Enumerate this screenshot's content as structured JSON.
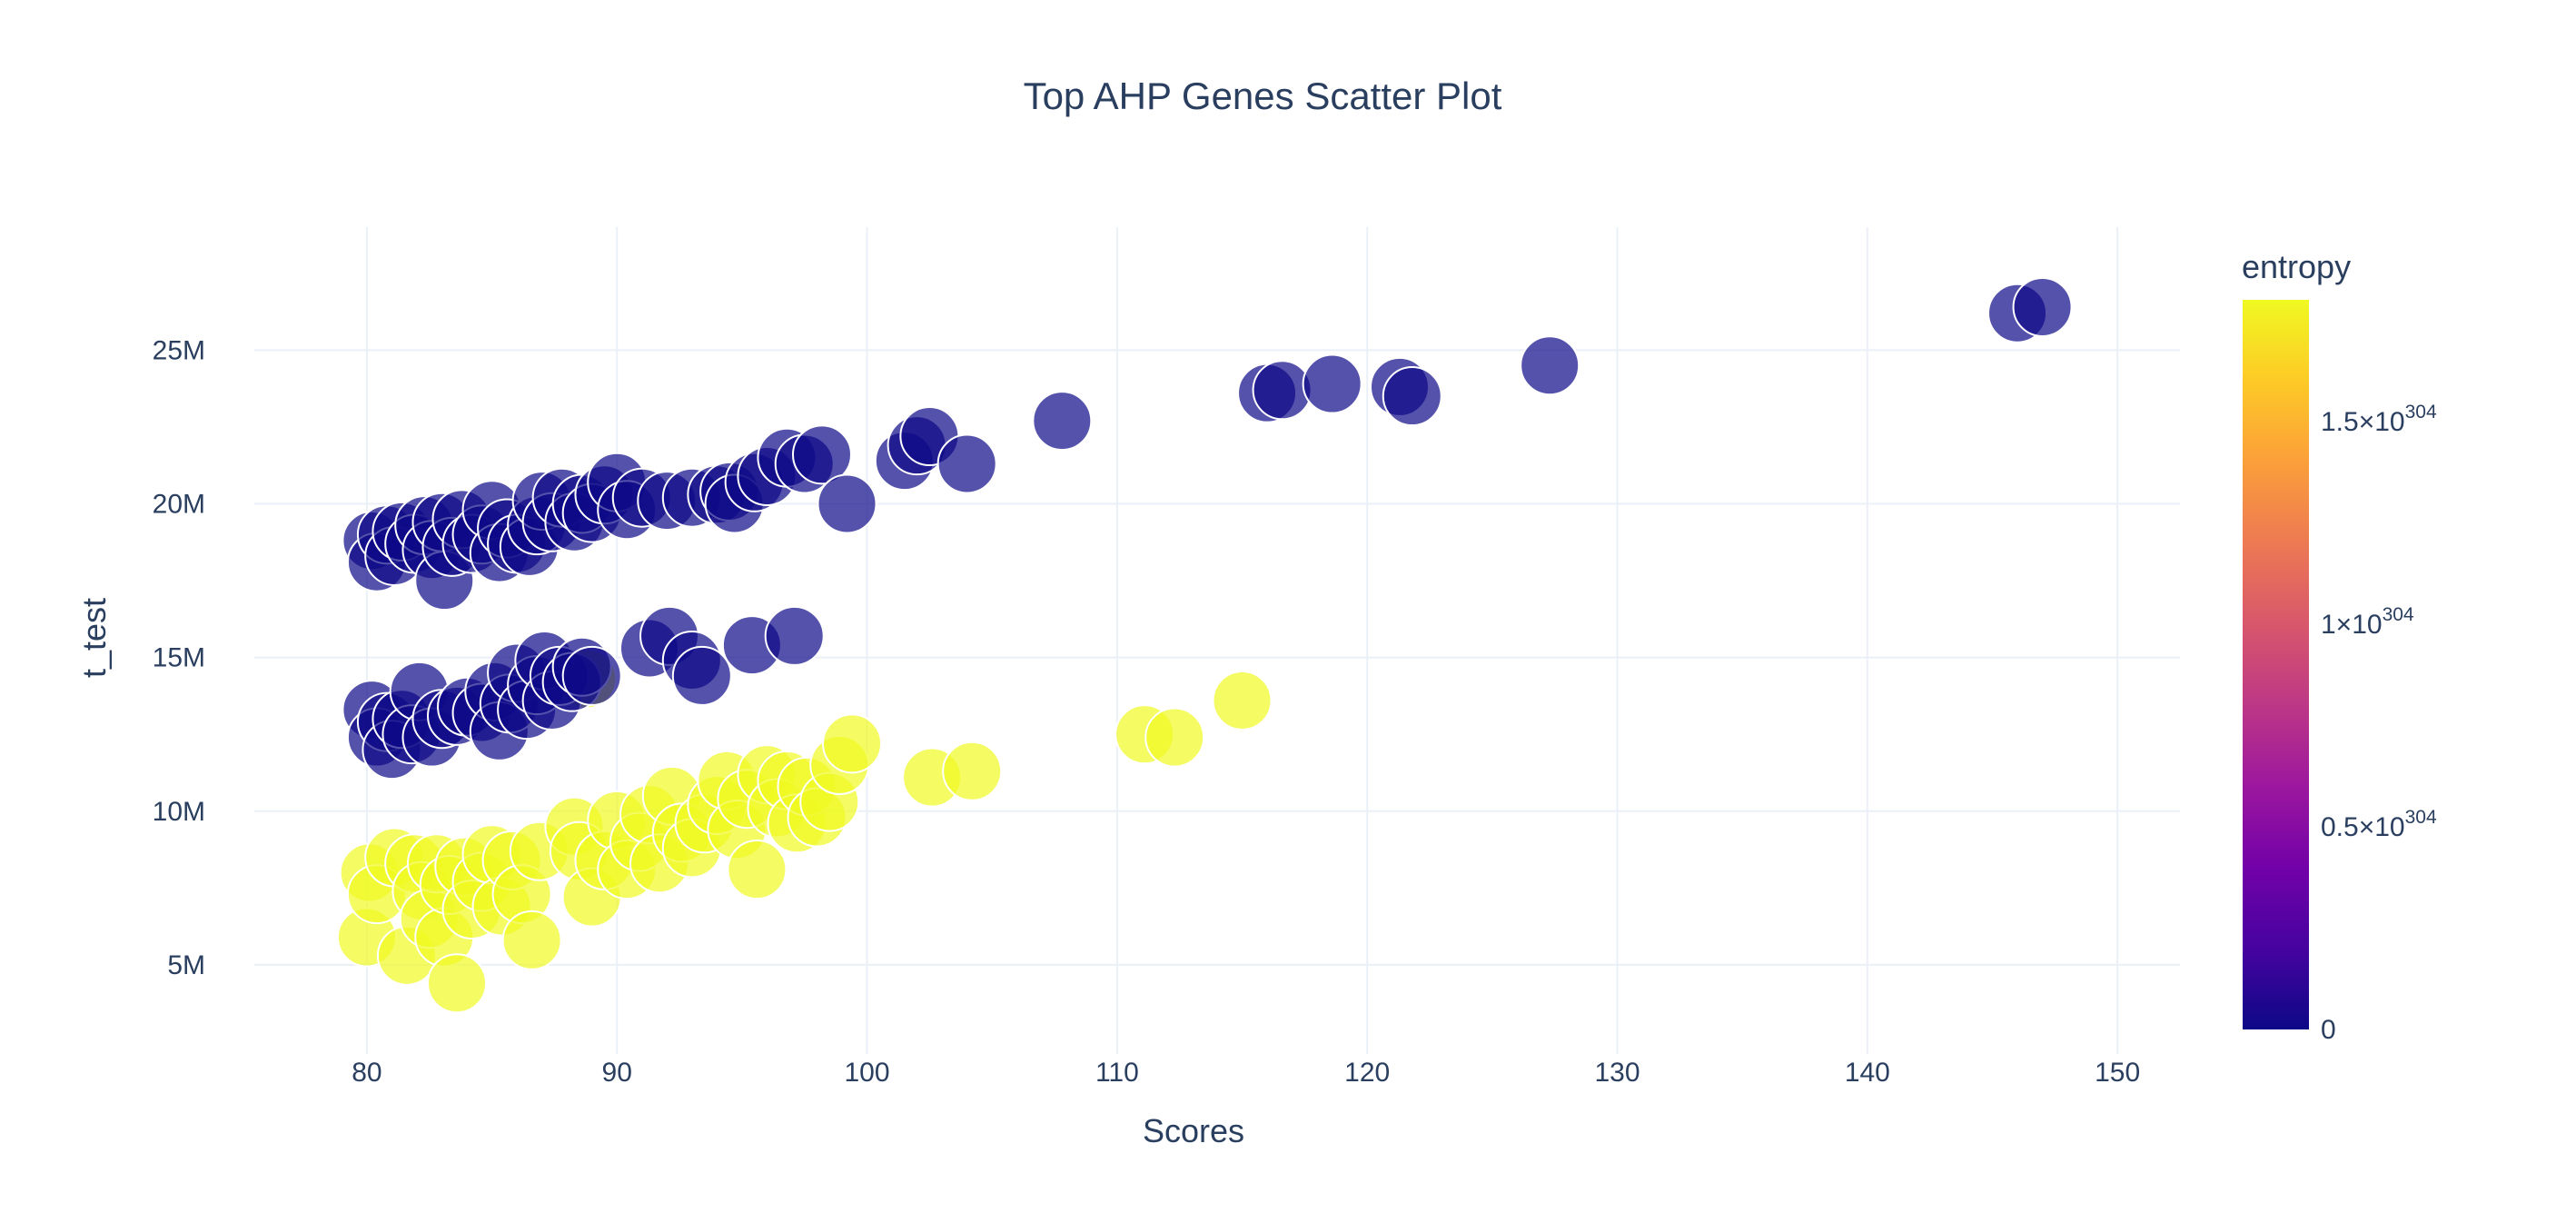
{
  "chart_data": {
    "type": "scatter",
    "title": "Top AHP Genes Scatter Plot",
    "xlabel": "Scores",
    "ylabel": "t_test",
    "xlim": [
      75.5,
      152.5
    ],
    "ylim": [
      2100000,
      29000000
    ],
    "grid": true,
    "x_ticks": [
      {
        "value": 80,
        "label": "80"
      },
      {
        "value": 90,
        "label": "90"
      },
      {
        "value": 100,
        "label": "100"
      },
      {
        "value": 110,
        "label": "110"
      },
      {
        "value": 120,
        "label": "120"
      },
      {
        "value": 130,
        "label": "130"
      },
      {
        "value": 140,
        "label": "140"
      },
      {
        "value": 150,
        "label": "150"
      }
    ],
    "y_ticks": [
      {
        "value": 5000000,
        "label": "5M"
      },
      {
        "value": 10000000,
        "label": "10M"
      },
      {
        "value": 15000000,
        "label": "15M"
      },
      {
        "value": 20000000,
        "label": "20M"
      },
      {
        "value": 25000000,
        "label": "25M"
      }
    ],
    "colorbar": {
      "title": "entropy",
      "range": [
        0,
        1.8e+304
      ],
      "colorscale": [
        "#0d0887",
        "#46039f",
        "#7201a8",
        "#9c179e",
        "#bd3786",
        "#d8576b",
        "#ed7953",
        "#fb9f3a",
        "#fdca26",
        "#f0f921"
      ],
      "ticks": [
        {
          "value": 0,
          "base": "0",
          "exp": ""
        },
        {
          "value": 5e+303,
          "base": "0.5×10",
          "exp": "304"
        },
        {
          "value": 1e+304,
          "base": "1×10",
          "exp": "304"
        },
        {
          "value": 1.5e+304,
          "base": "1.5×10",
          "exp": "304"
        }
      ]
    },
    "marker": {
      "opacity": 0.7,
      "outline": "#ffffff"
    },
    "series": [
      {
        "group": "upper",
        "color_value": 0,
        "points": [
          [
            80.2,
            18800000.0
          ],
          [
            80.4,
            18100000.0
          ],
          [
            80.8,
            19000000.0
          ],
          [
            81.1,
            18300000.0
          ],
          [
            81.4,
            19100000.0
          ],
          [
            81.9,
            18700000.0
          ],
          [
            82.3,
            19300000.0
          ],
          [
            82.6,
            18500000.0
          ],
          [
            83.0,
            19400000.0
          ],
          [
            83.1,
            17500000.0
          ],
          [
            83.4,
            18600000.0
          ],
          [
            83.8,
            19500000.0
          ],
          [
            84.2,
            18700000.0
          ],
          [
            84.6,
            19000000.0
          ],
          [
            85.0,
            19800000.0
          ],
          [
            85.3,
            18400000.0
          ],
          [
            85.6,
            19200000.0
          ],
          [
            86.0,
            18700000.0
          ],
          [
            86.5,
            18600000.0
          ],
          [
            86.8,
            19300000.0
          ],
          [
            87.0,
            20100000.0
          ],
          [
            87.4,
            19400000.0
          ],
          [
            87.8,
            20200000.0
          ],
          [
            88.3,
            19400000.0
          ],
          [
            88.6,
            20000000.0
          ],
          [
            89.0,
            19700000.0
          ],
          [
            89.5,
            20300000.0
          ],
          [
            90.0,
            20700000.0
          ],
          [
            90.4,
            19800000.0
          ],
          [
            91.0,
            20200000.0
          ],
          [
            92.0,
            20100000.0
          ],
          [
            93.0,
            20200000.0
          ],
          [
            94.0,
            20300000.0
          ],
          [
            94.5,
            20400000.0
          ],
          [
            94.7,
            20000000.0
          ],
          [
            95.5,
            20700000.0
          ],
          [
            96.0,
            20900000.0
          ],
          [
            96.8,
            21500000.0
          ],
          [
            97.5,
            21300000.0
          ],
          [
            98.2,
            21600000.0
          ],
          [
            99.2,
            20000000.0
          ],
          [
            101.5,
            21400000.0
          ],
          [
            102.0,
            21900000.0
          ],
          [
            102.5,
            22200000.0
          ],
          [
            104.0,
            21300000.0
          ],
          [
            107.8,
            22700000.0
          ],
          [
            116.0,
            23600000.0
          ],
          [
            116.6,
            23700000.0
          ],
          [
            118.6,
            23900000.0
          ],
          [
            121.3,
            23800000.0
          ],
          [
            121.8,
            23500000.0
          ],
          [
            127.3,
            24500000.0
          ],
          [
            146.0,
            26200000.0
          ],
          [
            147.0,
            26400000.0
          ]
        ]
      },
      {
        "group": "middle",
        "color_value": 0,
        "points": [
          [
            80.2,
            13300000.0
          ],
          [
            80.4,
            12400000.0
          ],
          [
            80.8,
            12900000.0
          ],
          [
            81.0,
            12000000.0
          ],
          [
            81.4,
            13000000.0
          ],
          [
            81.8,
            12500000.0
          ],
          [
            82.1,
            13900000.0
          ],
          [
            82.6,
            12400000.0
          ],
          [
            83.0,
            13000000.0
          ],
          [
            83.6,
            13100000.0
          ],
          [
            84.0,
            13400000.0
          ],
          [
            84.6,
            13200000.0
          ],
          [
            85.1,
            13900000.0
          ],
          [
            85.3,
            12600000.0
          ],
          [
            85.7,
            13500000.0
          ],
          [
            86.0,
            14500000.0
          ],
          [
            86.4,
            13300000.0
          ],
          [
            86.8,
            14100000.0
          ],
          [
            87.1,
            14900000.0
          ],
          [
            87.4,
            13600000.0
          ],
          [
            87.7,
            14400000.0
          ],
          [
            88.2,
            14200000.0
          ],
          [
            88.6,
            14700000.0
          ],
          [
            89.0,
            14400000.0
          ],
          [
            91.3,
            15300000.0
          ],
          [
            92.1,
            15700000.0
          ],
          [
            93.0,
            14900000.0
          ],
          [
            93.4,
            14400000.0
          ],
          [
            95.4,
            15400000.0
          ],
          [
            97.1,
            15700000.0
          ]
        ]
      },
      {
        "group": "lower",
        "color_value": 1.8e+304,
        "points": [
          [
            80.0,
            5900000.0
          ],
          [
            80.1,
            8000000.0
          ],
          [
            80.4,
            7300000.0
          ],
          [
            81.1,
            8500000.0
          ],
          [
            81.6,
            5300000.0
          ],
          [
            81.9,
            8300000.0
          ],
          [
            82.2,
            7400000.0
          ],
          [
            82.5,
            6500000.0
          ],
          [
            82.8,
            8300000.0
          ],
          [
            83.1,
            5900000.0
          ],
          [
            83.3,
            7600000.0
          ],
          [
            83.6,
            4400000.0
          ],
          [
            83.9,
            8200000.0
          ],
          [
            84.2,
            6800000.0
          ],
          [
            84.6,
            7700000.0
          ],
          [
            85.0,
            8600000.0
          ],
          [
            85.4,
            6900000.0
          ],
          [
            85.8,
            8400000.0
          ],
          [
            86.2,
            7300000.0
          ],
          [
            86.6,
            5800000.0
          ],
          [
            86.9,
            8700000.0
          ],
          [
            88.3,
            9500000.0
          ],
          [
            88.5,
            8700000.0
          ],
          [
            89.0,
            7200000.0
          ],
          [
            89.5,
            8400000.0
          ],
          [
            90.0,
            9700000.0
          ],
          [
            90.4,
            8100000.0
          ],
          [
            90.9,
            9000000.0
          ],
          [
            91.3,
            9900000.0
          ],
          [
            91.7,
            8300000.0
          ],
          [
            92.2,
            10500000.0
          ],
          [
            92.6,
            9300000.0
          ],
          [
            93.0,
            8800000.0
          ],
          [
            93.5,
            9600000.0
          ],
          [
            94.0,
            10200000.0
          ],
          [
            94.4,
            11000000.0
          ],
          [
            94.8,
            9400000.0
          ],
          [
            95.2,
            10400000.0
          ],
          [
            95.6,
            8100000.0
          ],
          [
            96.0,
            11200000.0
          ],
          [
            96.4,
            10100000.0
          ],
          [
            96.8,
            11000000.0
          ],
          [
            97.2,
            9600000.0
          ],
          [
            97.6,
            10800000.0
          ],
          [
            98.0,
            9800000.0
          ],
          [
            98.5,
            10300000.0
          ],
          [
            98.9,
            11500000.0
          ],
          [
            99.4,
            12200000.0
          ],
          [
            102.6,
            11100000.0
          ],
          [
            104.2,
            11300000.0
          ],
          [
            111.1,
            12500000.0
          ],
          [
            112.3,
            12400000.0
          ],
          [
            115.0,
            13600000.0
          ],
          [
            88.8,
            14300000.0
          ]
        ]
      }
    ]
  }
}
